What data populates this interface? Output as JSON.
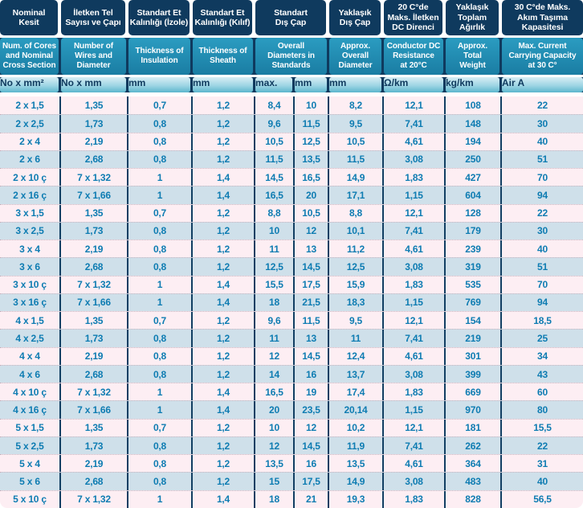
{
  "colors": {
    "navy": "#0f3a5e",
    "separator": "#123f63",
    "teal_header_top": "#2b9cc1",
    "teal_header_bottom": "#1a7da3",
    "unit_band_top": "#d8eef5",
    "unit_band_bottom": "#5cb6cd",
    "row_pink": "#fdeef3",
    "row_blue": "#cfe0ea",
    "data_text": "#0e7cb2"
  },
  "table": {
    "header_spans": [
      1,
      1,
      1,
      1,
      2,
      1,
      1,
      1,
      1
    ],
    "header_tr": [
      "Nominal\nKesit",
      "İletken Tel\nSayısı ve Çapı",
      "Standart Et\nKalınlığı (İzole)",
      "Standart Et\nKalınlığı (Kılıf)",
      "Standart\nDış Çap",
      "Yaklaşık\nDış Çap",
      "20 C°de\nMaks. İletken\nDC Direnci",
      "Yaklaşık\nToplam\nAğırlık",
      "30 C°de Maks.\nAkım Taşıma\nKapasitesi"
    ],
    "header_en": [
      "Num. of Cores\nand Nominal\nCross Section",
      "Number of\nWires and\nDiameter",
      "Thickness of\nInsulation",
      "Thickness of\nSheath",
      "Overall\nDiameters in\nStandards",
      "Approx.\nOverall\nDiameter",
      "Conductor DC\nResistance\nat 20°C",
      "Approx.\nTotal\nWeight",
      "Max. Current\nCarrying Capacity\nat 30 C°"
    ],
    "units": [
      "No x mm²",
      "No x mm",
      "mm",
      "mm",
      "max.",
      "mm",
      "mm",
      "Ω/km",
      "kg/km",
      "Air A"
    ],
    "rows": [
      [
        "2 x 1,5",
        "1,35",
        "0,7",
        "1,2",
        "8,4",
        "10",
        "8,2",
        "12,1",
        "108",
        "22"
      ],
      [
        "2 x 2,5",
        "1,73",
        "0,8",
        "1,2",
        "9,6",
        "11,5",
        "9,5",
        "7,41",
        "148",
        "30"
      ],
      [
        "2 x 4",
        "2,19",
        "0,8",
        "1,2",
        "10,5",
        "12,5",
        "10,5",
        "4,61",
        "194",
        "40"
      ],
      [
        "2 x 6",
        "2,68",
        "0,8",
        "1,2",
        "11,5",
        "13,5",
        "11,5",
        "3,08",
        "250",
        "51"
      ],
      [
        "2 x 10 ç",
        "7 x 1,32",
        "1",
        "1,4",
        "14,5",
        "16,5",
        "14,9",
        "1,83",
        "427",
        "70"
      ],
      [
        "2 x 16 ç",
        "7 x 1,66",
        "1",
        "1,4",
        "16,5",
        "20",
        "17,1",
        "1,15",
        "604",
        "94"
      ],
      [
        "3 x 1,5",
        "1,35",
        "0,7",
        "1,2",
        "8,8",
        "10,5",
        "8,8",
        "12,1",
        "128",
        "22"
      ],
      [
        "3 x 2,5",
        "1,73",
        "0,8",
        "1,2",
        "10",
        "12",
        "10,1",
        "7,41",
        "179",
        "30"
      ],
      [
        "3 x 4",
        "2,19",
        "0,8",
        "1,2",
        "11",
        "13",
        "11,2",
        "4,61",
        "239",
        "40"
      ],
      [
        "3 x 6",
        "2,68",
        "0,8",
        "1,2",
        "12,5",
        "14,5",
        "12,5",
        "3,08",
        "319",
        "51"
      ],
      [
        "3 x 10 ç",
        "7 x 1,32",
        "1",
        "1,4",
        "15,5",
        "17,5",
        "15,9",
        "1,83",
        "535",
        "70"
      ],
      [
        "3 x 16 ç",
        "7 x 1,66",
        "1",
        "1,4",
        "18",
        "21,5",
        "18,3",
        "1,15",
        "769",
        "94"
      ],
      [
        "4 x 1,5",
        "1,35",
        "0,7",
        "1,2",
        "9,6",
        "11,5",
        "9,5",
        "12,1",
        "154",
        "18,5"
      ],
      [
        "4 x 2,5",
        "1,73",
        "0,8",
        "1,2",
        "11",
        "13",
        "11",
        "7,41",
        "219",
        "25"
      ],
      [
        "4 x 4",
        "2,19",
        "0,8",
        "1,2",
        "12",
        "14,5",
        "12,4",
        "4,61",
        "301",
        "34"
      ],
      [
        "4 x 6",
        "2,68",
        "0,8",
        "1,2",
        "14",
        "16",
        "13,7",
        "3,08",
        "399",
        "43"
      ],
      [
        "4 x 10 ç",
        "7 x 1,32",
        "1",
        "1,4",
        "16,5",
        "19",
        "17,4",
        "1,83",
        "669",
        "60"
      ],
      [
        "4 x 16 ç",
        "7 x 1,66",
        "1",
        "1,4",
        "20",
        "23,5",
        "20,14",
        "1,15",
        "970",
        "80"
      ],
      [
        "5 x 1,5",
        "1,35",
        "0,7",
        "1,2",
        "10",
        "12",
        "10,2",
        "12,1",
        "181",
        "15,5"
      ],
      [
        "5 x 2,5",
        "1,73",
        "0,8",
        "1,2",
        "12",
        "14,5",
        "11,9",
        "7,41",
        "262",
        "22"
      ],
      [
        "5 x 4",
        "2,19",
        "0,8",
        "1,2",
        "13,5",
        "16",
        "13,5",
        "4,61",
        "364",
        "31"
      ],
      [
        "5 x 6",
        "2,68",
        "0,8",
        "1,2",
        "15",
        "17,5",
        "14,9",
        "3,08",
        "483",
        "40"
      ],
      [
        "5 x 10 ç",
        "7 x 1,32",
        "1",
        "1,4",
        "18",
        "21",
        "19,3",
        "1,83",
        "828",
        "56,5"
      ]
    ]
  }
}
